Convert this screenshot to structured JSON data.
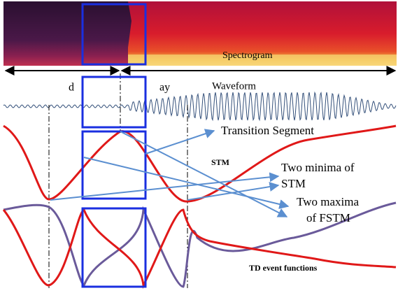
{
  "labels": {
    "spectrogram": "Spectrogram",
    "d": "d",
    "ay": "ay",
    "waveform": "Waveform",
    "transition": "Transition Segment",
    "stm": "STM",
    "minima": [
      "Two minima of",
      "STM"
    ],
    "maxima": [
      "Two maxima",
      "of FSTM"
    ],
    "td": "TD event functions"
  }
}
